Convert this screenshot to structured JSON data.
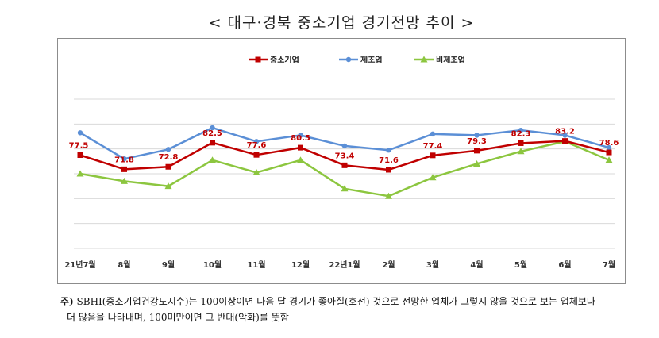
{
  "title": "< 대구·경북 중소기업 경기전망 추이 >",
  "footnote": {
    "prefix": "주)",
    "line1": "SBHI(중소기업건강도지수)는 100이상이면 다음 달 경기가 좋아질(호전) 것으로 전망한 업체가 그렇지 않을 것으로 보는 업체보다",
    "line2": "더 많음을 나타내며, 100미만이면 그 반대(악화)를 뜻함"
  },
  "colors": {
    "sme": "#c00000",
    "manufacturing": "#5b8fd6",
    "non_manufacturing": "#8cc63f",
    "grid": "#d9d9d9"
  },
  "chart_data": {
    "type": "line",
    "categories": [
      "21년7월",
      "8월",
      "9월",
      "10월",
      "11월",
      "12월",
      "22년1월",
      "2월",
      "3월",
      "4월",
      "5월",
      "6월",
      "7월"
    ],
    "ylim": [
      40,
      100
    ],
    "grid": true,
    "legend_position": "top-center",
    "series": [
      {
        "name": "중소기업",
        "color": "#c00000",
        "marker": "square",
        "values": [
          77.5,
          71.8,
          72.8,
          82.5,
          77.6,
          80.5,
          73.4,
          71.6,
          77.4,
          79.3,
          82.3,
          83.2,
          78.6
        ],
        "labels": [
          "77.5",
          "71.8",
          "72.8",
          "82.5",
          "77.6",
          "80.5",
          "73.4",
          "71.6",
          "77.4",
          "79.3",
          "82.3",
          "83.2",
          "78.6"
        ]
      },
      {
        "name": "제조업",
        "color": "#5b8fd6",
        "marker": "circle",
        "values": [
          86.5,
          76.0,
          79.8,
          88.5,
          83.0,
          85.5,
          81.2,
          79.5,
          86.0,
          85.5,
          87.5,
          85.5,
          80.5
        ]
      },
      {
        "name": "비제조업",
        "color": "#8cc63f",
        "marker": "triangle",
        "values": [
          70.0,
          67.0,
          65.0,
          75.5,
          70.5,
          75.5,
          64.0,
          61.0,
          68.5,
          74.0,
          79.0,
          83.0,
          75.5
        ]
      }
    ]
  }
}
